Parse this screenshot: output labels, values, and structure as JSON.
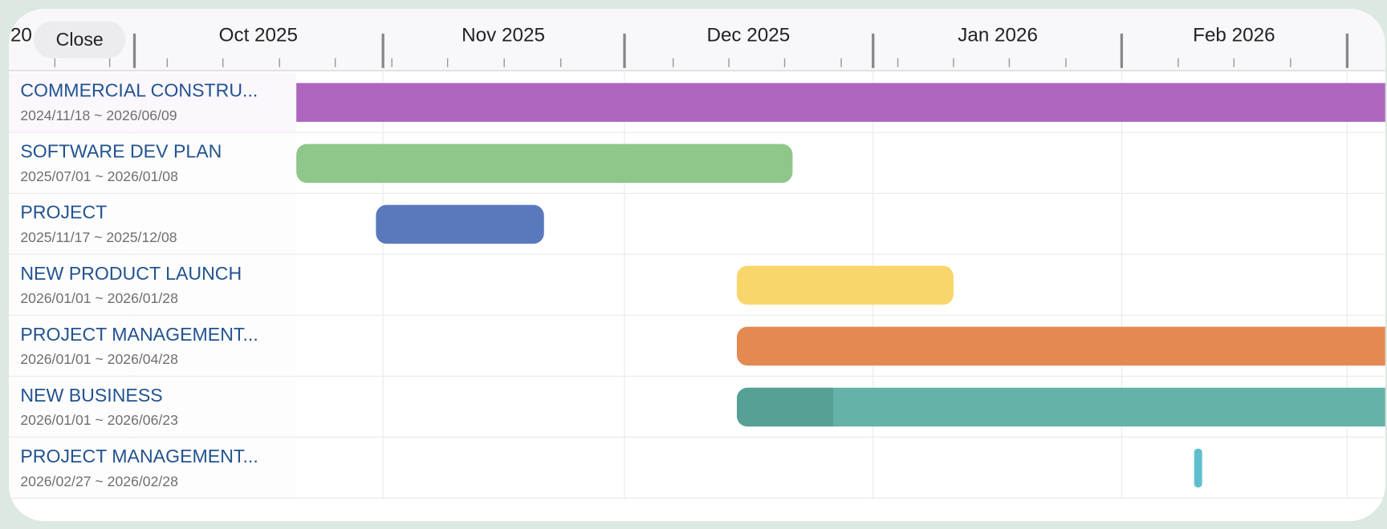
{
  "header": {
    "close": "Close",
    "months": [
      "20",
      "Oct 2025",
      "Nov 2025",
      "Dec 2025",
      "Jan 2026",
      "Feb 2026"
    ]
  },
  "rows": [
    {
      "name": "COMMERCIAL CONSTRU...",
      "dates": "2024/11/18 ~ 2026/06/09"
    },
    {
      "name": "SOFTWARE DEV PLAN",
      "dates": "2025/07/01 ~ 2026/01/08"
    },
    {
      "name": "PROJECT",
      "dates": "2025/11/17 ~ 2025/12/08"
    },
    {
      "name": "NEW PRODUCT LAUNCH",
      "dates": "2026/01/01 ~ 2026/01/28"
    },
    {
      "name": "PROJECT MANAGEMENT...",
      "dates": "2026/01/01 ~ 2026/04/28"
    },
    {
      "name": "NEW BUSINESS",
      "dates": "2026/01/01 ~ 2026/06/23"
    },
    {
      "name": "PROJECT MANAGEMENT...",
      "dates": "2026/02/27 ~ 2026/02/28"
    }
  ]
}
